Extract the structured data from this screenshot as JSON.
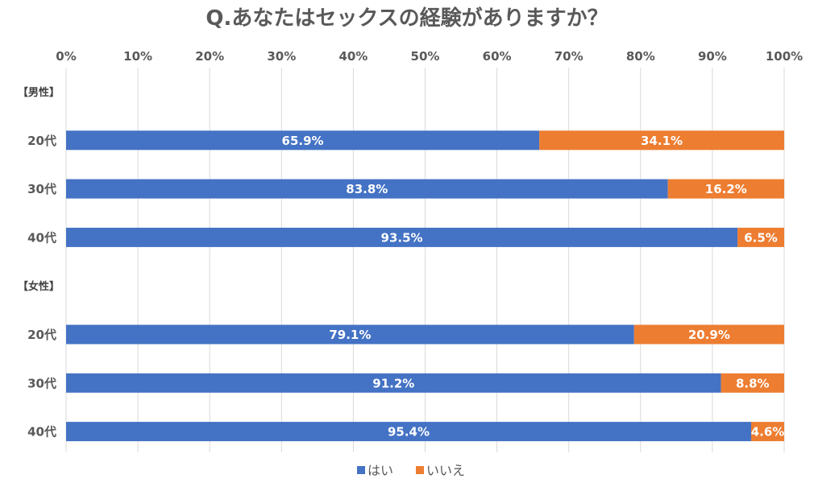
{
  "chart_data": {
    "type": "bar",
    "orientation": "horizontal",
    "stacked": "percent",
    "title": "Q.あなたはセックスの経験がありますか？",
    "xlim": [
      0,
      100
    ],
    "x_ticks": [
      "0%",
      "10%",
      "20%",
      "30%",
      "40%",
      "50%",
      "60%",
      "70%",
      "80%",
      "90%",
      "100%"
    ],
    "grid": true,
    "legend_position": "bottom",
    "rows": [
      {
        "kind": "group",
        "label": "【男性】"
      },
      {
        "kind": "bar",
        "label": "20代",
        "values": [
          65.9,
          34.1
        ],
        "labels": [
          "65.9%",
          "34.1%"
        ]
      },
      {
        "kind": "bar",
        "label": "30代",
        "values": [
          83.8,
          16.2
        ],
        "labels": [
          "83.8%",
          "16.2%"
        ]
      },
      {
        "kind": "bar",
        "label": "40代",
        "values": [
          93.5,
          6.5
        ],
        "labels": [
          "93.5%",
          "6.5%"
        ]
      },
      {
        "kind": "group",
        "label": "【女性】"
      },
      {
        "kind": "bar",
        "label": "20代",
        "values": [
          79.1,
          20.9
        ],
        "labels": [
          "79.1%",
          "20.9%"
        ]
      },
      {
        "kind": "bar",
        "label": "30代",
        "values": [
          91.2,
          8.8
        ],
        "labels": [
          "91.2%",
          "8.8%"
        ]
      },
      {
        "kind": "bar",
        "label": "40代",
        "values": [
          95.4,
          4.6
        ],
        "labels": [
          "95.4%",
          "4.6%"
        ]
      }
    ],
    "series": [
      {
        "name": "はい",
        "color": "#4472C4"
      },
      {
        "name": "いいえ",
        "color": "#ED7D31"
      }
    ]
  }
}
